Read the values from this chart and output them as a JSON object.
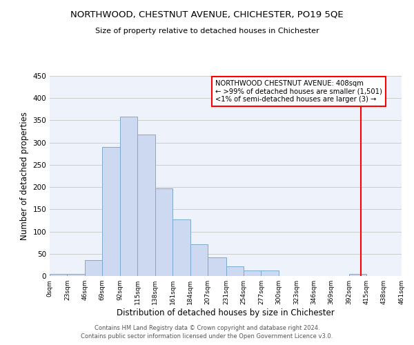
{
  "title": "NORTHWOOD, CHESTNUT AVENUE, CHICHESTER, PO19 5QE",
  "subtitle": "Size of property relative to detached houses in Chichester",
  "xlabel": "Distribution of detached houses by size in Chichester",
  "ylabel": "Number of detached properties",
  "bar_edges": [
    0,
    23,
    46,
    69,
    92,
    115,
    138,
    161,
    184,
    207,
    231,
    254,
    277,
    300,
    323,
    346,
    369,
    392,
    415,
    438,
    461
  ],
  "bar_heights": [
    5,
    5,
    35,
    290,
    358,
    318,
    197,
    128,
    71,
    42,
    22,
    13,
    13,
    0,
    0,
    0,
    0,
    5,
    0,
    0
  ],
  "bar_color": "#ccd9f0",
  "bar_edge_color": "#7aaad0",
  "grid_color": "#cccccc",
  "bg_color": "#eef2fb",
  "red_line_x": 408,
  "annotation_title": "NORTHWOOD CHESTNUT AVENUE: 408sqm",
  "annotation_line1": "← >99% of detached houses are smaller (1,501)",
  "annotation_line2": "<1% of semi-detached houses are larger (3) →",
  "ylim": [
    0,
    450
  ],
  "yticks": [
    0,
    50,
    100,
    150,
    200,
    250,
    300,
    350,
    400,
    450
  ],
  "footer1": "Contains HM Land Registry data © Crown copyright and database right 2024.",
  "footer2": "Contains public sector information licensed under the Open Government Licence v3.0.",
  "tick_labels": [
    "0sqm",
    "23sqm",
    "46sqm",
    "69sqm",
    "92sqm",
    "115sqm",
    "138sqm",
    "161sqm",
    "184sqm",
    "207sqm",
    "231sqm",
    "254sqm",
    "277sqm",
    "300sqm",
    "323sqm",
    "346sqm",
    "369sqm",
    "392sqm",
    "415sqm",
    "438sqm",
    "461sqm"
  ]
}
